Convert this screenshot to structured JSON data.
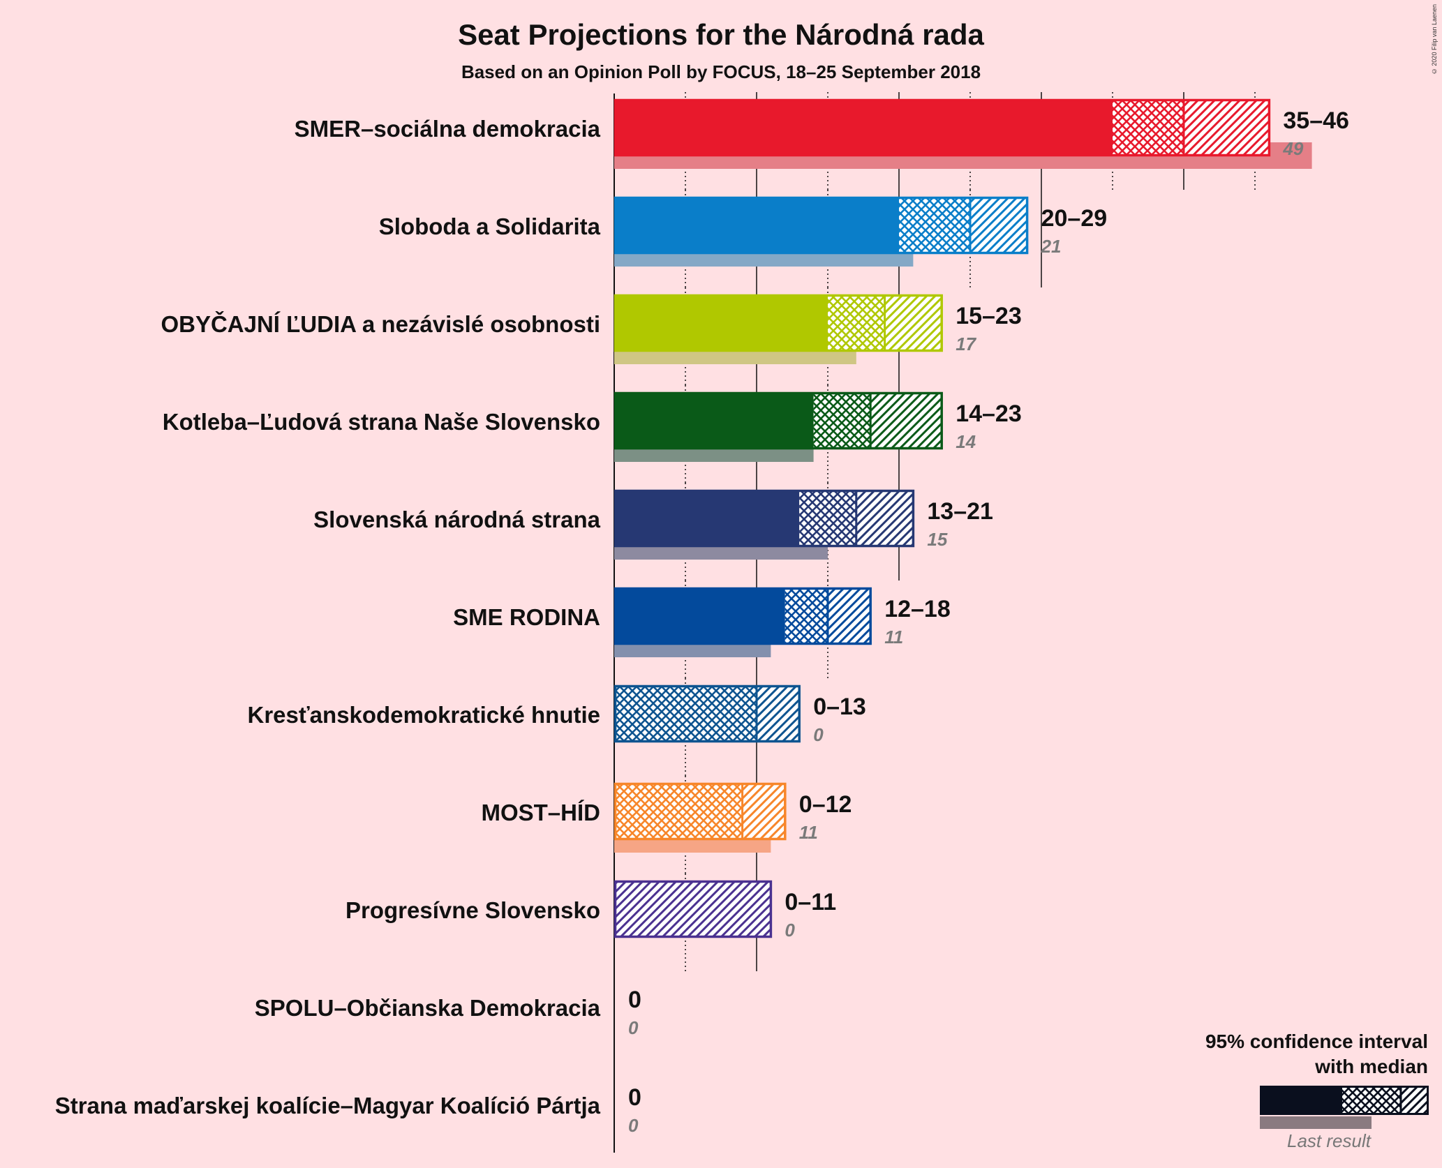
{
  "chart_data": {
    "type": "bar",
    "title": "Seat Projections for the Národná rada",
    "subtitle": "Based on an Opinion Poll by FOCUS, 18–25 September 2018",
    "copyright": "© 2020 Filip van Laenen",
    "scale_max_seats": 50,
    "gridlines_solid": [
      0,
      10,
      20,
      30,
      40
    ],
    "gridlines_dotted": [
      5,
      15,
      25,
      35,
      45
    ],
    "parties": [
      {
        "name": "SMER–sociálna demokracia",
        "color": "#e8192c",
        "last_color": "#e57f87",
        "low": 35,
        "median": 40,
        "high": 46,
        "range_label": "35–46",
        "last": 49,
        "last_label": "49"
      },
      {
        "name": "Sloboda a Solidarita",
        "color": "#0a7ec9",
        "last_color": "#84a8c6",
        "low": 20,
        "median": 25,
        "high": 29,
        "range_label": "20–29",
        "last": 21,
        "last_label": "21"
      },
      {
        "name": "OBYČAJNÍ ĽUDIA a nezávislé osobnosti",
        "color": "#b0c800",
        "last_color": "#cfc684",
        "low": 15,
        "median": 19,
        "high": 23,
        "range_label": "15–23",
        "last": 17,
        "last_label": "17"
      },
      {
        "name": "Kotleba–Ľudová strana Naše Slovensko",
        "color": "#0a5a18",
        "last_color": "#7c9085",
        "low": 14,
        "median": 18,
        "high": 23,
        "range_label": "14–23",
        "last": 14,
        "last_label": "14"
      },
      {
        "name": "Slovenská národná strana",
        "color": "#263873",
        "last_color": "#8d8aa0",
        "low": 13,
        "median": 17,
        "high": 21,
        "range_label": "13–21",
        "last": 15,
        "last_label": "15"
      },
      {
        "name": "SME RODINA",
        "color": "#034a9c",
        "last_color": "#8390ad",
        "low": 12,
        "median": 15,
        "high": 18,
        "range_label": "12–18",
        "last": 11,
        "last_label": "11"
      },
      {
        "name": "Kresťanskodemokratické hnutie",
        "color": "#0e5490",
        "last_color": "#8296ab",
        "low": 0,
        "median": 10,
        "high": 13,
        "range_label": "0–13",
        "last": 0,
        "last_label": "0"
      },
      {
        "name": "MOST–HÍD",
        "color": "#f7862a",
        "last_color": "#f6a585",
        "low": 0,
        "median": 9,
        "high": 12,
        "range_label": "0–12",
        "last": 11,
        "last_label": "11"
      },
      {
        "name": "Progresívne Slovensko",
        "color": "#4a3190",
        "last_color": "#a99fb8",
        "low": 0,
        "median": 0,
        "high": 11,
        "range_label": "0–11",
        "last": 0,
        "last_label": "0"
      },
      {
        "name": "SPOLU–Občianska Demokracia",
        "color": "#1a3c8c",
        "last_color": "#8c97b0",
        "low": 0,
        "median": 0,
        "high": 0,
        "range_label": "0",
        "last": 0,
        "last_label": "0"
      },
      {
        "name": "Strana maďarskej koalície–Magyar Koalíció Pártja",
        "color": "#2b6f3b",
        "last_color": "#8ea595",
        "low": 0,
        "median": 0,
        "high": 0,
        "range_label": "0",
        "last": 0,
        "last_label": "0"
      }
    ],
    "legend": {
      "line1": "95% confidence interval",
      "line2": "with median",
      "last_result": "Last result",
      "placement": "bottom-right"
    }
  }
}
